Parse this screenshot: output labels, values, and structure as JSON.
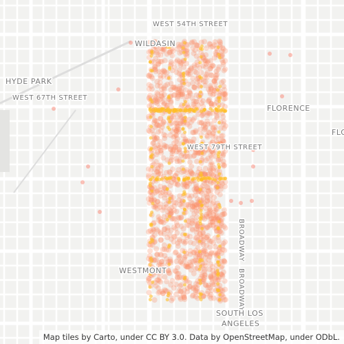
{
  "labels": [
    "WEST 54TH STREET",
    "WILDASIN",
    "HYDE PARK",
    "WEST 67TH STREET",
    "FLORENCE",
    "FLO",
    "WEST 79TH STREET",
    "BROADWAY",
    "BROADWAY",
    "WESTMONT",
    "SOUTH LOS",
    "ANGELES"
  ],
  "attribution": "Map tiles by Carto, under CC BY 3.0. Data by OpenStreetMap, under ODbL."
}
